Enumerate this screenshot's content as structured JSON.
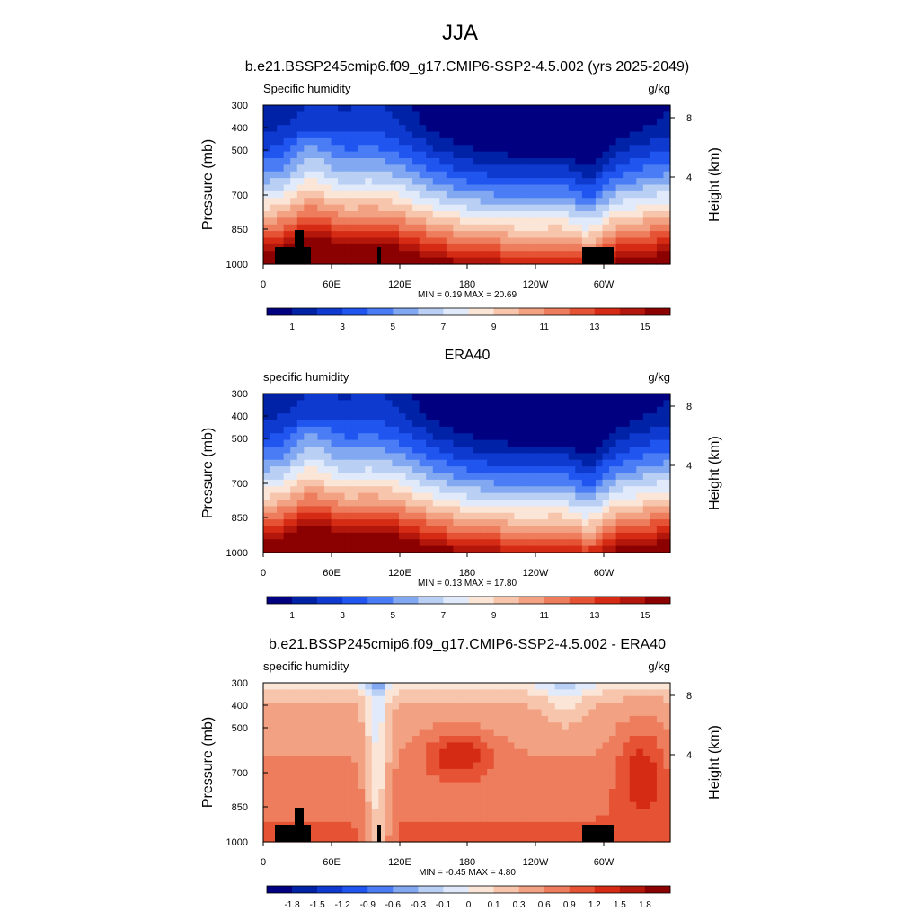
{
  "title": "JJA",
  "colors": {
    "abs_scale": [
      "#000080",
      "#0022a6",
      "#0e3ad0",
      "#2055f0",
      "#4a7df5",
      "#82a8f2",
      "#b9cff4",
      "#e0eafa",
      "#fbe5d7",
      "#f7c5ab",
      "#f2a283",
      "#ed7d5c",
      "#e55234",
      "#d52b14",
      "#b3160a",
      "#8b0000"
    ],
    "diff_scale": [
      "#000080",
      "#0022a6",
      "#0e3ad0",
      "#2055f0",
      "#4a7df5",
      "#82a8f2",
      "#b9cff4",
      "#e0eafa",
      "#fbe5d7",
      "#f7c5ab",
      "#f2a283",
      "#ed7d5c",
      "#e55234",
      "#d52b14",
      "#b3160a",
      "#8b0000"
    ],
    "land_mask": "#000000"
  },
  "chart_data": [
    {
      "type": "heatmap",
      "title": "b.e21.BSSP245cmip6.f09_g17.CMIP6-SSP2-4.5.002 (yrs 2025-2049)",
      "left_label": "Specific humidity",
      "units": "g/kg",
      "ylabel": "Pressure (mb)",
      "y2label": "Height (km)",
      "yticks": [
        "300",
        "400",
        "500",
        "700",
        "850",
        "1000"
      ],
      "y2ticks": [
        "8",
        "4"
      ],
      "xticks": [
        "0",
        "60E",
        "120E",
        "180",
        "120W",
        "60W"
      ],
      "stats": "MIN =   0.19  MAX =  20.69",
      "colorbar_labels": [
        "1",
        "3",
        "5",
        "7",
        "9",
        "11",
        "13",
        "15"
      ],
      "field": "abs",
      "masked": true
    },
    {
      "type": "heatmap",
      "title": "ERA40",
      "left_label": "specific humidity",
      "units": "g/kg",
      "ylabel": "Pressure (mb)",
      "y2label": "Height (km)",
      "yticks": [
        "300",
        "400",
        "500",
        "700",
        "850",
        "1000"
      ],
      "y2ticks": [
        "8",
        "4"
      ],
      "xticks": [
        "0",
        "60E",
        "120E",
        "180",
        "120W",
        "60W"
      ],
      "stats": "MIN =   0.13  MAX =  17.80",
      "colorbar_labels": [
        "1",
        "3",
        "5",
        "7",
        "9",
        "11",
        "13",
        "15"
      ],
      "field": "abs",
      "masked": false
    },
    {
      "type": "heatmap",
      "title": "b.e21.BSSP245cmip6.f09_g17.CMIP6-SSP2-4.5.002 - ERA40",
      "left_label": "specific humidity",
      "units": "g/kg",
      "ylabel": "Pressure (mb)",
      "y2label": "Height (km)",
      "yticks": [
        "300",
        "400",
        "500",
        "700",
        "850",
        "1000"
      ],
      "y2ticks": [
        "8",
        "4"
      ],
      "xticks": [
        "0",
        "60E",
        "120E",
        "180",
        "120W",
        "60W"
      ],
      "stats": "MIN =  -0.45  MAX =   4.80",
      "colorbar_labels": [
        "-1.8",
        "-1.5",
        "-1.2",
        "-0.9",
        "-0.6",
        "-0.3",
        "-0.1",
        "0",
        "0.1",
        "0.3",
        "0.6",
        "0.9",
        "1.2",
        "1.5",
        "1.8"
      ],
      "field": "diff",
      "masked": true
    }
  ]
}
